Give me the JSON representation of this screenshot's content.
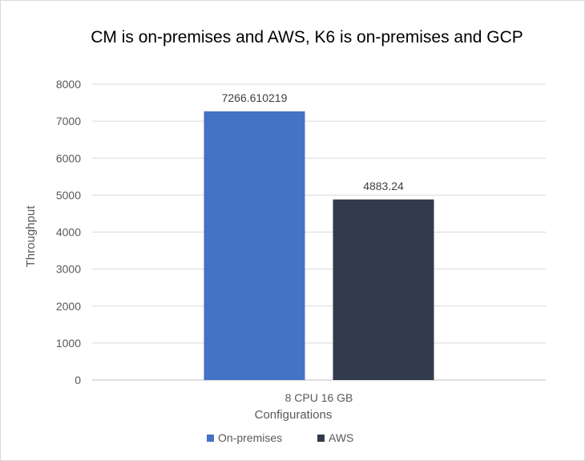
{
  "chart_data": {
    "type": "bar",
    "title": "CM is on-premises and AWS, K6 is on-premises and GCP",
    "xlabel": "Configurations",
    "ylabel": "Throughput",
    "categories": [
      "8 CPU 16 GB"
    ],
    "series": [
      {
        "name": "On-premises",
        "values": [
          7266.610219
        ],
        "data_labels": [
          "7266.610219"
        ],
        "color": "#4472c4"
      },
      {
        "name": "AWS",
        "values": [
          4883.24
        ],
        "data_labels": [
          "4883.24"
        ],
        "color": "#323b4c"
      }
    ],
    "ylim": [
      0,
      8000
    ],
    "yticks": [
      "0",
      "1000",
      "2000",
      "3000",
      "4000",
      "5000",
      "6000",
      "7000",
      "8000"
    ],
    "grid": true,
    "legend_position": "bottom"
  },
  "colors": {
    "text": "#595959",
    "title": "#000000",
    "gridline": "#d9d9d9",
    "axis": "#bfbfbf"
  }
}
